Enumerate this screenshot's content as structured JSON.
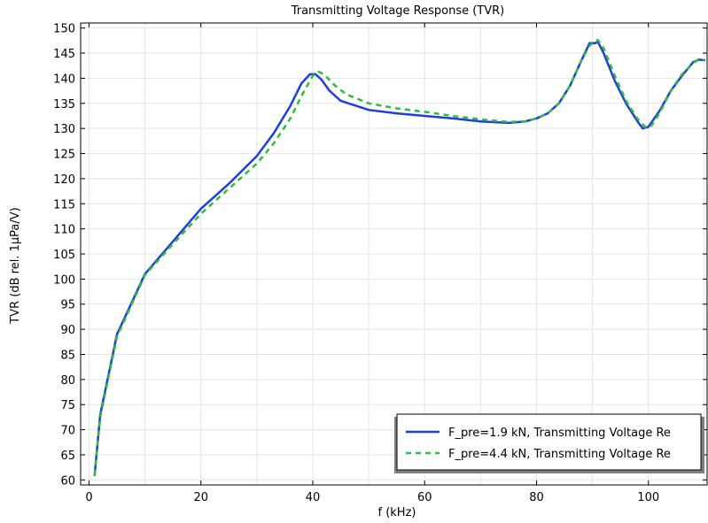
{
  "chart_data": {
    "type": "line",
    "title": "Transmitting Voltage Response (TVR)",
    "xlabel": "f (kHz)",
    "ylabel": "TVR (dB rel. 1µPa/V)",
    "xlim": [
      -1.5,
      110.5
    ],
    "ylim": [
      59,
      151
    ],
    "xticks": [
      0,
      20,
      40,
      60,
      80,
      100
    ],
    "yticks": [
      60,
      65,
      70,
      75,
      80,
      85,
      90,
      95,
      100,
      105,
      110,
      115,
      120,
      125,
      130,
      135,
      140,
      145,
      150
    ],
    "grid": true,
    "legend_position": "bottom-right",
    "series": [
      {
        "name": "F_pre=1.9 kN, Transmitting Voltage Re",
        "color": "#1f3fdc",
        "dash": "solid",
        "x": [
          1,
          2,
          5,
          10,
          15,
          20,
          25,
          30,
          33,
          36,
          38,
          39.5,
          40.5,
          41.5,
          43,
          45,
          50,
          55,
          60,
          65,
          70,
          75,
          78,
          80,
          82,
          84,
          86,
          88,
          89.5,
          90.5,
          91,
          92,
          94,
          96,
          98,
          99,
          100,
          102,
          104,
          106,
          108,
          109,
          110
        ],
        "y": [
          61,
          73,
          89,
          101,
          107.5,
          114,
          119,
          124.5,
          129,
          134.5,
          139,
          140.8,
          140.8,
          139.8,
          137.5,
          135.5,
          133.7,
          133,
          132.5,
          132,
          131.4,
          131.1,
          131.4,
          132,
          133,
          135,
          138.5,
          143.5,
          147,
          147,
          147.2,
          145,
          139.5,
          135,
          131.5,
          130,
          130.3,
          133.5,
          137.5,
          140.5,
          143.2,
          143.7,
          143.6
        ]
      },
      {
        "name": "F_pre=4.4 kN, Transmitting Voltage Re",
        "color": "#2ebd3c",
        "dash": "dashed",
        "x": [
          1,
          2,
          5,
          10,
          15,
          20,
          25,
          30,
          33,
          36,
          38,
          40,
          41,
          42,
          44,
          46,
          50,
          55,
          60,
          65,
          70,
          75,
          78,
          80,
          82,
          84,
          86,
          88,
          89.5,
          90.5,
          91,
          92,
          94,
          96,
          98,
          99.5,
          100.5,
          102,
          104,
          106,
          108,
          109,
          110
        ],
        "y": [
          61,
          72.5,
          88.5,
          100.8,
          107,
          113,
          118,
          123,
          127,
          132,
          136.5,
          140.5,
          141.3,
          140.8,
          138.5,
          136.8,
          135,
          134,
          133.3,
          132.5,
          131.8,
          131.3,
          131.4,
          132,
          133,
          135,
          138.5,
          143.5,
          146.5,
          147.4,
          147.6,
          146,
          140.5,
          135.5,
          132,
          130.2,
          130.5,
          133,
          137.5,
          140.8,
          143,
          143.8,
          143.6
        ]
      }
    ]
  }
}
